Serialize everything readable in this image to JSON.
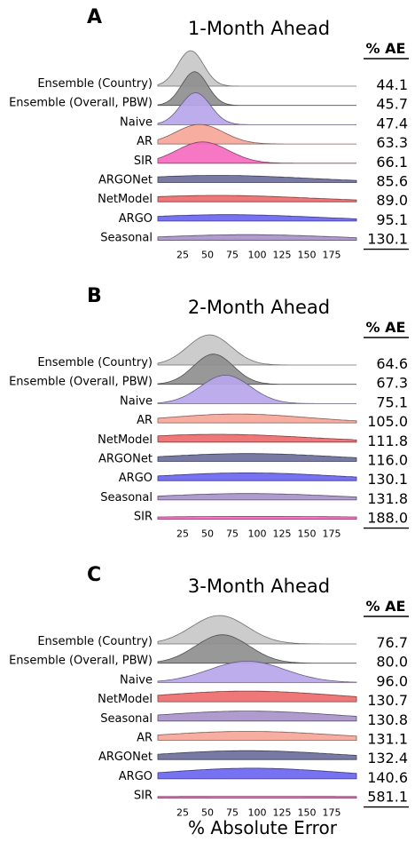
{
  "chart_data": {
    "type": "ridgeline",
    "xlabel": "% Absolute Error",
    "ae_header": "% AE",
    "x_ticks": [
      25,
      50,
      75,
      100,
      125,
      150,
      175
    ],
    "xlim": [
      0,
      200
    ],
    "colors": {
      "Ensemble (Country)": "#c8c8c8",
      "Ensemble (Overall, PBW)": "#8f8f8f",
      "Naive": "#b9a6ea",
      "AR": "#f6a698",
      "SIR": "#f56dbf",
      "ARGONet": "#6e6f9c",
      "NetModel": "#ee6b6d",
      "ARGO": "#6b66f0",
      "Seasonal": "#a892c9"
    },
    "panels": [
      {
        "letter": "A",
        "title": "1-Month Ahead",
        "rows": [
          {
            "name": "Ensemble (Country)",
            "ae": "44.1",
            "peak": 33,
            "width": 13,
            "height": 1.0
          },
          {
            "name": "Ensemble (Overall, PBW)",
            "ae": "45.7",
            "peak": 37,
            "width": 13,
            "height": 0.95
          },
          {
            "name": "Naive",
            "ae": "47.4",
            "peak": 38,
            "width": 15,
            "height": 0.9
          },
          {
            "name": "AR",
            "ae": "63.3",
            "peak": 42,
            "width": 24,
            "height": 0.55
          },
          {
            "name": "SIR",
            "ae": "66.1",
            "peak": 45,
            "width": 26,
            "height": 0.6
          },
          {
            "name": "ARGONet",
            "ae": "85.6",
            "peak": 60,
            "width": 90,
            "height": 0.2
          },
          {
            "name": "NetModel",
            "ae": "89.0",
            "peak": 60,
            "width": 90,
            "height": 0.18
          },
          {
            "name": "ARGO",
            "ae": "95.1",
            "peak": 70,
            "width": 90,
            "height": 0.18
          },
          {
            "name": "Seasonal",
            "ae": "130.1",
            "peak": 90,
            "width": 90,
            "height": 0.16
          }
        ]
      },
      {
        "letter": "B",
        "title": "2-Month Ahead",
        "rows": [
          {
            "name": "Ensemble (Country)",
            "ae": "64.6",
            "peak": 52,
            "width": 22,
            "height": 0.85
          },
          {
            "name": "Ensemble (Overall, PBW)",
            "ae": "67.3",
            "peak": 56,
            "width": 20,
            "height": 0.85
          },
          {
            "name": "Naive",
            "ae": "75.1",
            "peak": 68,
            "width": 25,
            "height": 0.8
          },
          {
            "name": "AR",
            "ae": "105.0",
            "peak": 80,
            "width": 70,
            "height": 0.25
          },
          {
            "name": "NetModel",
            "ae": "111.8",
            "peak": 60,
            "width": 90,
            "height": 0.22
          },
          {
            "name": "ARGONet",
            "ae": "116.0",
            "peak": 90,
            "width": 90,
            "height": 0.22
          },
          {
            "name": "ARGO",
            "ae": "130.1",
            "peak": 90,
            "width": 90,
            "height": 0.22
          },
          {
            "name": "Seasonal",
            "ae": "131.8",
            "peak": 90,
            "width": 90,
            "height": 0.18
          },
          {
            "name": "SIR",
            "ae": "188.0",
            "peak": 100,
            "width": 150,
            "height": 0.08
          }
        ]
      },
      {
        "letter": "C",
        "title": "3-Month Ahead",
        "rows": [
          {
            "name": "Ensemble (Country)",
            "ae": "76.7",
            "peak": 62,
            "width": 28,
            "height": 0.8
          },
          {
            "name": "Ensemble (Overall, PBW)",
            "ae": "80.0",
            "peak": 65,
            "width": 27,
            "height": 0.8
          },
          {
            "name": "Naive",
            "ae": "96.0",
            "peak": 90,
            "width": 38,
            "height": 0.6
          },
          {
            "name": "NetModel",
            "ae": "130.7",
            "peak": 90,
            "width": 90,
            "height": 0.3
          },
          {
            "name": "Seasonal",
            "ae": "130.8",
            "peak": 90,
            "width": 90,
            "height": 0.28
          },
          {
            "name": "AR",
            "ae": "131.1",
            "peak": 90,
            "width": 90,
            "height": 0.25
          },
          {
            "name": "ARGONet",
            "ae": "132.4",
            "peak": 90,
            "width": 90,
            "height": 0.25
          },
          {
            "name": "ARGO",
            "ae": "140.6",
            "peak": 95,
            "width": 90,
            "height": 0.3
          },
          {
            "name": "SIR",
            "ae": "581.1",
            "peak": 100,
            "width": 200,
            "height": 0.05
          }
        ]
      }
    ]
  }
}
